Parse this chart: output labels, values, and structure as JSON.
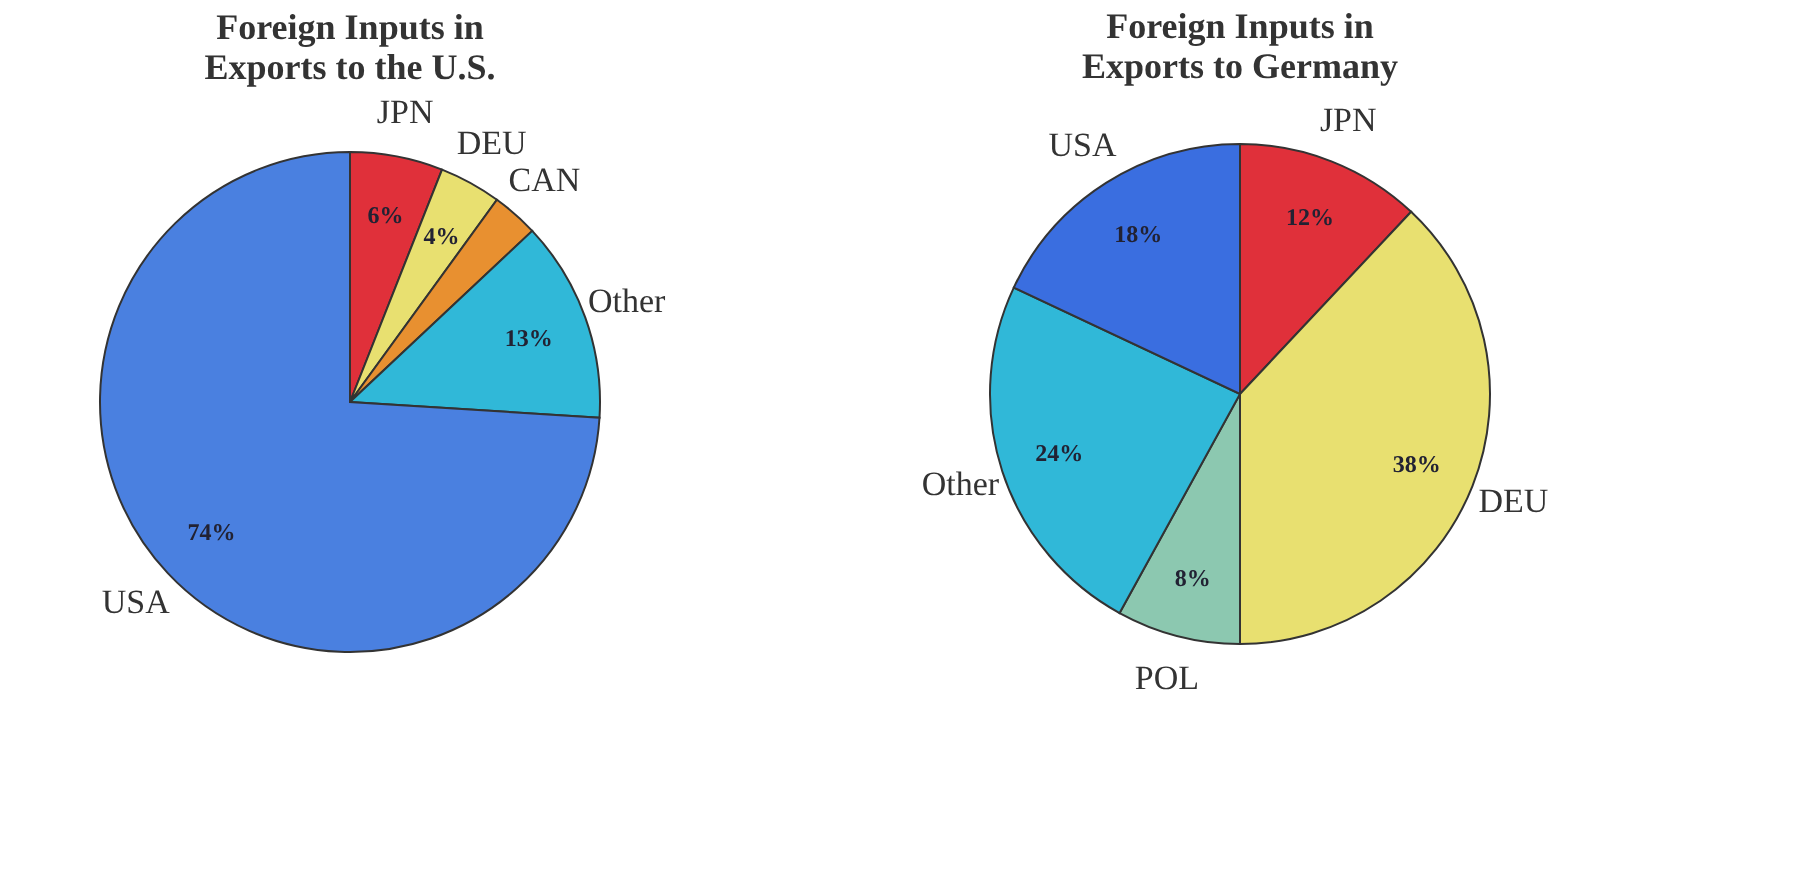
{
  "chart_data": [
    {
      "type": "pie",
      "title": "Foreign Inputs in Exports to the U.S.",
      "categories": [
        "JPN",
        "DEU",
        "CAN",
        "Other",
        "USA"
      ],
      "values": [
        6,
        4,
        3,
        13,
        74
      ],
      "colors": [
        "#e0303a",
        "#e8e070",
        "#e89030",
        "#30b8d8",
        "#4a80e0"
      ],
      "value_labels": [
        "6%",
        "4%",
        null,
        "13%",
        "74%"
      ]
    },
    {
      "type": "pie",
      "title": "Foreign Inputs in Exports to Germany",
      "categories": [
        "JPN",
        "DEU",
        "POL",
        "Other",
        "USA"
      ],
      "values": [
        12,
        38,
        8,
        24,
        18
      ],
      "colors": [
        "#e0303a",
        "#e8e070",
        "#8cc8b0",
        "#30b8d8",
        "#3a6ee0"
      ],
      "value_labels": [
        "12%",
        "38%",
        "8%",
        "24%",
        "18%"
      ]
    }
  ]
}
